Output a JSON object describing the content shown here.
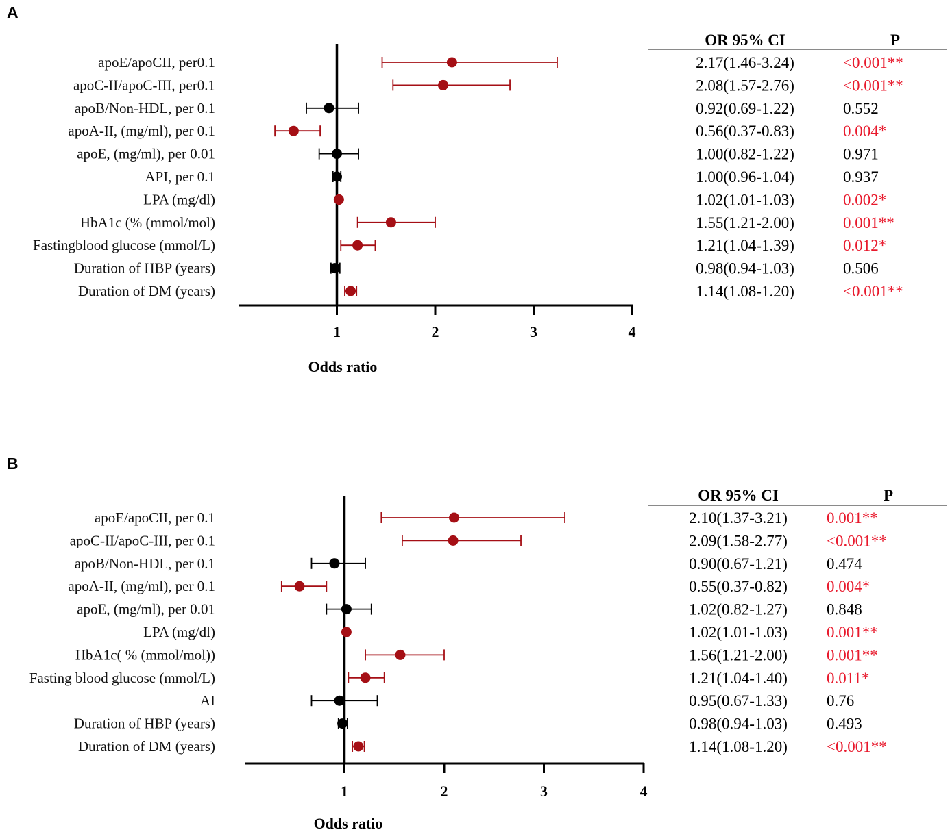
{
  "chart_data": [
    {
      "panel_label": "A",
      "type": "forest",
      "xlabel": "Odds ratio",
      "x_range": [
        0,
        4
      ],
      "x_ticks": [
        1,
        2,
        3,
        4
      ],
      "reference_line": 1,
      "table_headers": {
        "or_ci": "OR 95% CI",
        "p": "P"
      },
      "colors": {
        "significant": "#a50f15",
        "nonsignificant": "#000000",
        "p_significant_text": "#e8192c"
      },
      "rows": [
        {
          "label": "apoE/apoCII, per0.1",
          "or": 2.17,
          "lo": 1.46,
          "hi": 3.24,
          "ci_text": "2.17(1.46-3.24)",
          "p_text": "<0.001**",
          "significant": true
        },
        {
          "label": "apoC-II/apoC-III, per0.1",
          "or": 2.08,
          "lo": 1.57,
          "hi": 2.76,
          "ci_text": "2.08(1.57-2.76)",
          "p_text": "<0.001**",
          "significant": true
        },
        {
          "label": "apoB/Non-HDL, per 0.1",
          "or": 0.92,
          "lo": 0.69,
          "hi": 1.22,
          "ci_text": "0.92(0.69-1.22)",
          "p_text": "0.552",
          "significant": false
        },
        {
          "label": "apoA-II,  (mg/ml), per 0.1",
          "or": 0.56,
          "lo": 0.37,
          "hi": 0.83,
          "ci_text": "0.56(0.37-0.83)",
          "p_text": "0.004*",
          "significant": true
        },
        {
          "label": "apoE, (mg/ml), per 0.01",
          "or": 1.0,
          "lo": 0.82,
          "hi": 1.22,
          "ci_text": "1.00(0.82-1.22)",
          "p_text": "0.971",
          "significant": false
        },
        {
          "label": "API, per 0.1",
          "or": 1.0,
          "lo": 0.96,
          "hi": 1.04,
          "ci_text": "1.00(0.96-1.04)",
          "p_text": "0.937",
          "significant": false
        },
        {
          "label": "LPA (mg/dl)",
          "or": 1.02,
          "lo": 1.01,
          "hi": 1.03,
          "ci_text": "1.02(1.01-1.03)",
          "p_text": "0.002*",
          "significant": true
        },
        {
          "label": "HbA1c (% (mmol/mol)",
          "or": 1.55,
          "lo": 1.21,
          "hi": 2.0,
          "ci_text": "1.55(1.21-2.00)",
          "p_text": "0.001**",
          "significant": true
        },
        {
          "label": "Fastingblood glucose (mmol/L)",
          "or": 1.21,
          "lo": 1.04,
          "hi": 1.39,
          "ci_text": "1.21(1.04-1.39)",
          "p_text": "0.012*",
          "significant": true
        },
        {
          "label": "Duration of HBP (years)",
          "or": 0.98,
          "lo": 0.94,
          "hi": 1.03,
          "ci_text": "0.98(0.94-1.03)",
          "p_text": "0.506",
          "significant": false
        },
        {
          "label": "Duration of DM (years)",
          "or": 1.14,
          "lo": 1.08,
          "hi": 1.2,
          "ci_text": "1.14(1.08-1.20)",
          "p_text": "<0.001**",
          "significant": true
        }
      ]
    },
    {
      "panel_label": "B",
      "type": "forest",
      "xlabel": "Odds ratio",
      "x_range": [
        0,
        4
      ],
      "x_ticks": [
        1,
        2,
        3,
        4
      ],
      "reference_line": 1,
      "table_headers": {
        "or_ci": "OR 95% CI",
        "p": "P"
      },
      "colors": {
        "significant": "#a50f15",
        "nonsignificant": "#000000",
        "p_significant_text": "#e8192c"
      },
      "rows": [
        {
          "label": "apoE/apoCII, per 0.1",
          "or": 2.1,
          "lo": 1.37,
          "hi": 3.21,
          "ci_text": "2.10(1.37-3.21)",
          "p_text": "0.001**",
          "significant": true
        },
        {
          "label": "apoC-II/apoC-III, per 0.1",
          "or": 2.09,
          "lo": 1.58,
          "hi": 2.77,
          "ci_text": "2.09(1.58-2.77)",
          "p_text": "<0.001**",
          "significant": true
        },
        {
          "label": "apoB/Non-HDL, per 0.1",
          "or": 0.9,
          "lo": 0.67,
          "hi": 1.21,
          "ci_text": "0.90(0.67-1.21)",
          "p_text": "0.474",
          "significant": false
        },
        {
          "label": "apoA-II, (mg/ml), per 0.1",
          "or": 0.55,
          "lo": 0.37,
          "hi": 0.82,
          "ci_text": "0.55(0.37-0.82)",
          "p_text": "0.004*",
          "significant": true
        },
        {
          "label": "apoE, (mg/ml), per 0.01",
          "or": 1.02,
          "lo": 0.82,
          "hi": 1.27,
          "ci_text": "1.02(0.82-1.27)",
          "p_text": "0.848",
          "significant": false
        },
        {
          "label": "LPA (mg/dl)",
          "or": 1.02,
          "lo": 1.01,
          "hi": 1.03,
          "ci_text": "1.02(1.01-1.03)",
          "p_text": "0.001**",
          "significant": true
        },
        {
          "label": "HbA1c( % (mmol/mol))",
          "or": 1.56,
          "lo": 1.21,
          "hi": 2.0,
          "ci_text": "1.56(1.21-2.00)",
          "p_text": "0.001**",
          "significant": true
        },
        {
          "label": "Fasting blood glucose (mmol/L)",
          "or": 1.21,
          "lo": 1.04,
          "hi": 1.4,
          "ci_text": "1.21(1.04-1.40)",
          "p_text": "0.011*",
          "significant": true
        },
        {
          "label": "AI",
          "or": 0.95,
          "lo": 0.67,
          "hi": 1.33,
          "ci_text": "0.95(0.67-1.33)",
          "p_text": "0.76",
          "significant": false
        },
        {
          "label": "Duration of HBP (years)",
          "or": 0.98,
          "lo": 0.94,
          "hi": 1.03,
          "ci_text": "0.98(0.94-1.03)",
          "p_text": "0.493",
          "significant": false
        },
        {
          "label": "Duration of DM (years)",
          "or": 1.14,
          "lo": 1.08,
          "hi": 1.2,
          "ci_text": "1.14(1.08-1.20)",
          "p_text": "<0.001**",
          "significant": true
        }
      ]
    }
  ]
}
